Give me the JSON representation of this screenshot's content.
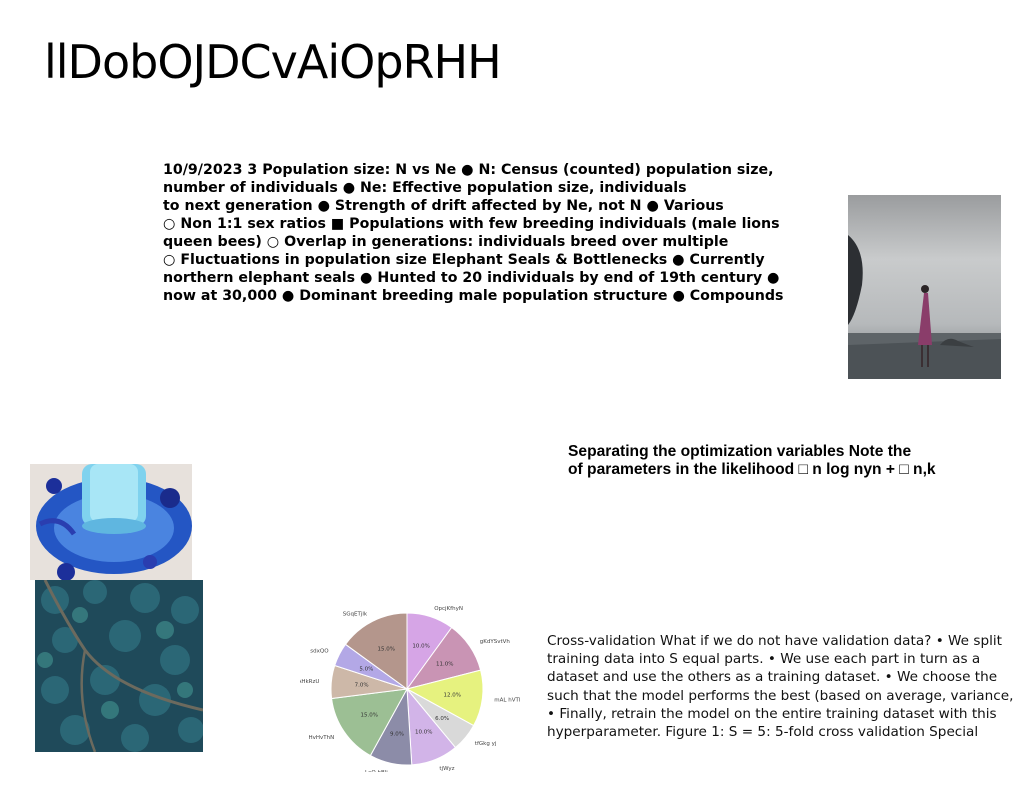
{
  "title": "llDobOJDCvAiOpRHH",
  "block1": {
    "lines": [
      "10/9/2023 3 Population size: N vs Ne ● N: Census (counted) population size,",
      "number of individuals ● Ne: Effective population size, individuals",
      "to next generation ● Strength of drift affected by Ne, not N ● Various",
      "○ Non 1:1 sex ratios ■ Populations with few breeding individuals (male lions",
      "queen bees) ○ Overlap in generations: individuals breed over multiple",
      "○ Fluctuations in population size Elephant Seals & Bottlenecks ● Currently",
      "northern elephant seals ● Hunted to 20 individuals by end of 19th century ●",
      "now at 30,000 ● Dominant breeding male population structure ● Compounds"
    ]
  },
  "block2": {
    "lines": [
      "Separating the optimization variables Note the",
      "of parameters in the likelihood □ n log nyn + □ n,k"
    ]
  },
  "block3": {
    "lines": [
      "Cross-validation What if we do not have validation data? • We split",
      "training data into S equal parts. • We use each part in turn as a",
      "dataset and use the others as a training dataset. • We choose the",
      "such that the model performs the best (based on average, variance,",
      "• Finally, retrain the model on the entire training dataset with this",
      "hyperparameter. Figure 1: S = 5: 5-fold cross validation Special"
    ]
  },
  "images": {
    "woman_beach": "photo-woman-on-beach",
    "blue_glass": "photo-blue-glass",
    "forest": "photo-aerial-forest"
  },
  "chart_data": {
    "type": "pie",
    "title": "",
    "categories": [
      "OpcjKfhyN",
      "gKdYSvtVh",
      "mAL hVTNA",
      "tfGkg yj",
      "tjWyz",
      "LaO hBli",
      "HvHvThN",
      "oHLQAHkRzU",
      "sdxQO",
      "SGqETjlk"
    ],
    "values": [
      10.0,
      11.0,
      12.0,
      6.0,
      10.0,
      9.0,
      15.0,
      7.0,
      5.0,
      15.0
    ],
    "value_labels": [
      "10.0%",
      "11.0%",
      "12.0%",
      "6.0%",
      "10.0%",
      "9.0%",
      "15.0%",
      "7.0%",
      "5.0%",
      "15.0%"
    ],
    "colors": [
      "#d6a5e6",
      "#c994b4",
      "#e6f27f",
      "#d9d9d9",
      "#d2b4e8",
      "#8c8ca8",
      "#9cbf94",
      "#cdb8a8",
      "#b3a8e6",
      "#b4968c"
    ],
    "start_angle": "12 o'clock, clockwise"
  }
}
